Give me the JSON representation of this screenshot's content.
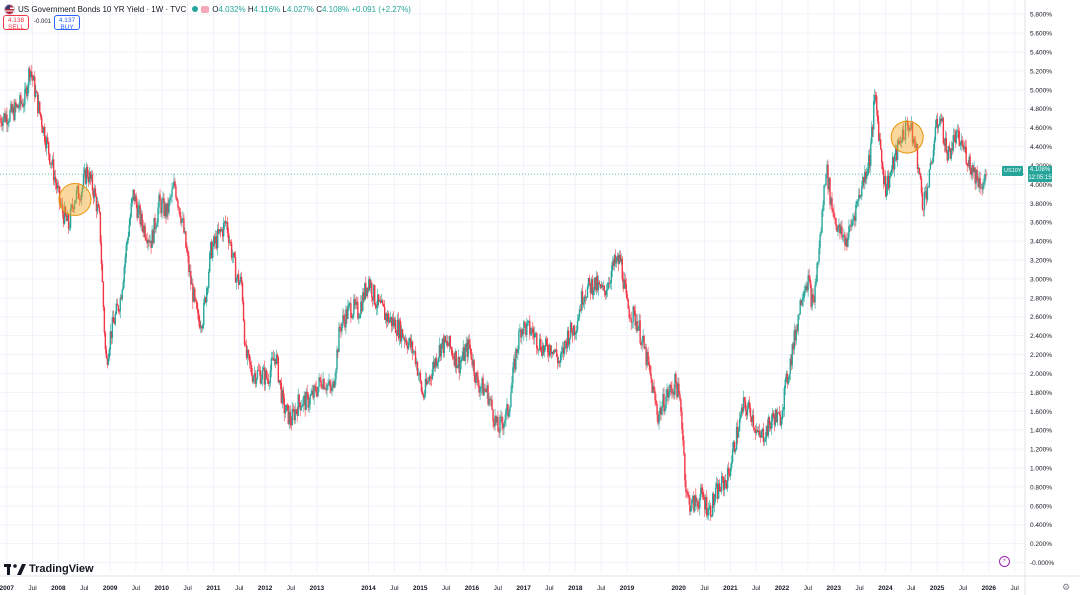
{
  "header": {
    "title": "US Government Bonds 10 YR Yield · 1W · TVC",
    "ohlc": {
      "open_label": "O",
      "open": "4.032%",
      "high_label": "H",
      "high": "4.116%",
      "low_label": "L",
      "low": "4.027%",
      "close_label": "C",
      "close": "4.108%",
      "change": "+0.091 (+2.27%)"
    },
    "sell": {
      "price": "4.138",
      "label": "SELL"
    },
    "buy": {
      "price": "4.137",
      "label": "BUY"
    },
    "spread": "-0.001"
  },
  "price_tag": {
    "ticker": "US10Y",
    "value": "4.108%",
    "countdown": "12:05:15"
  },
  "branding": {
    "logo_text": "TradingView"
  },
  "colors": {
    "up": "#26a69a",
    "down": "#f23645",
    "marker": "#f5a623",
    "grid": "#f0f3fa"
  },
  "chart_data": {
    "type": "candlestick",
    "y_unit": "%",
    "ylim": [
      -0.1,
      5.95
    ],
    "y_ticks": [
      "5.800%",
      "5.600%",
      "5.400%",
      "5.200%",
      "5.000%",
      "4.800%",
      "4.600%",
      "4.400%",
      "4.200%",
      "4.000%",
      "3.800%",
      "3.600%",
      "3.400%",
      "3.200%",
      "3.000%",
      "2.800%",
      "2.600%",
      "2.400%",
      "2.200%",
      "2.000%",
      "1.800%",
      "1.600%",
      "1.400%",
      "1.200%",
      "1.000%",
      "0.800%",
      "0.600%",
      "0.400%",
      "0.200%",
      "-0.000%"
    ],
    "y_tick_values": [
      5.8,
      5.6,
      5.4,
      5.2,
      5.0,
      4.8,
      4.6,
      4.4,
      4.2,
      4.0,
      3.8,
      3.6,
      3.4,
      3.2,
      3.0,
      2.8,
      2.6,
      2.4,
      2.2,
      2.0,
      1.8,
      1.6,
      1.4,
      1.2,
      1.0,
      0.8,
      0.6,
      0.4,
      0.2,
      0.0
    ],
    "x_ticks": [
      "2007",
      "Jul",
      "2008",
      "Jul",
      "2009",
      "Jul",
      "2010",
      "Jul",
      "2011",
      "Jul",
      "2012",
      "Jul",
      "2013",
      "2014",
      "Jul",
      "2015",
      "Jul",
      "2016",
      "Jul",
      "2017",
      "Jul",
      "2018",
      "Jul",
      "2019",
      "2020",
      "Jul",
      "2021",
      "Jul",
      "2022",
      "Jul",
      "2023",
      "Jul",
      "2024",
      "Jul",
      "2025",
      "Jul",
      "2026",
      "Jul"
    ],
    "x_tick_values": [
      2007.0,
      2007.5,
      2008.0,
      2008.5,
      2009.0,
      2009.5,
      2010.0,
      2010.5,
      2011.0,
      2011.5,
      2012.0,
      2012.5,
      2013.0,
      2014.0,
      2014.5,
      2015.0,
      2015.5,
      2016.0,
      2016.5,
      2017.0,
      2017.5,
      2018.0,
      2018.5,
      2019.0,
      2020.0,
      2020.5,
      2021.0,
      2021.5,
      2022.0,
      2022.5,
      2023.0,
      2023.5,
      2024.0,
      2024.5,
      2025.0,
      2025.5,
      2026.0,
      2026.5
    ],
    "xlim": [
      2006.87,
      2026.7
    ],
    "current_price": 4.108,
    "highlight_circles": [
      {
        "x": 2008.32,
        "y": 3.84
      },
      {
        "x": 2024.42,
        "y": 4.5
      }
    ],
    "path": [
      [
        2006.87,
        4.7
      ],
      [
        2007.1,
        4.75
      ],
      [
        2007.35,
        4.9
      ],
      [
        2007.45,
        5.25
      ],
      [
        2007.6,
        4.85
      ],
      [
        2007.75,
        4.5
      ],
      [
        2007.9,
        4.15
      ],
      [
        2008.05,
        3.75
      ],
      [
        2008.2,
        3.55
      ],
      [
        2008.3,
        3.85
      ],
      [
        2008.45,
        3.95
      ],
      [
        2008.55,
        4.15
      ],
      [
        2008.7,
        3.9
      ],
      [
        2008.8,
        3.6
      ],
      [
        2008.85,
        2.95
      ],
      [
        2008.92,
        2.1
      ],
      [
        2009.0,
        2.4
      ],
      [
        2009.2,
        2.8
      ],
      [
        2009.35,
        3.5
      ],
      [
        2009.45,
        3.9
      ],
      [
        2009.6,
        3.6
      ],
      [
        2009.8,
        3.4
      ],
      [
        2009.95,
        3.8
      ],
      [
        2010.1,
        3.7
      ],
      [
        2010.25,
        4.0
      ],
      [
        2010.4,
        3.6
      ],
      [
        2010.55,
        3.0
      ],
      [
        2010.7,
        2.55
      ],
      [
        2010.8,
        2.6
      ],
      [
        2010.95,
        3.3
      ],
      [
        2011.1,
        3.45
      ],
      [
        2011.25,
        3.6
      ],
      [
        2011.35,
        3.3
      ],
      [
        2011.45,
        3.0
      ],
      [
        2011.55,
        2.95
      ],
      [
        2011.62,
        2.2
      ],
      [
        2011.75,
        2.0
      ],
      [
        2011.9,
        2.0
      ],
      [
        2012.05,
        1.95
      ],
      [
        2012.2,
        2.2
      ],
      [
        2012.35,
        1.65
      ],
      [
        2012.5,
        1.5
      ],
      [
        2012.65,
        1.7
      ],
      [
        2012.8,
        1.7
      ],
      [
        2012.95,
        1.78
      ],
      [
        2013.1,
        1.95
      ],
      [
        2013.3,
        1.8
      ],
      [
        2013.45,
        2.5
      ],
      [
        2013.65,
        2.7
      ],
      [
        2013.8,
        2.65
      ],
      [
        2013.95,
        2.9
      ],
      [
        2014.0,
        3.0
      ],
      [
        2014.15,
        2.75
      ],
      [
        2014.35,
        2.6
      ],
      [
        2014.55,
        2.5
      ],
      [
        2014.75,
        2.35
      ],
      [
        2014.9,
        2.2
      ],
      [
        2015.05,
        1.75
      ],
      [
        2015.2,
        2.0
      ],
      [
        2015.4,
        2.3
      ],
      [
        2015.55,
        2.3
      ],
      [
        2015.75,
        2.1
      ],
      [
        2015.95,
        2.3
      ],
      [
        2016.1,
        1.9
      ],
      [
        2016.3,
        1.8
      ],
      [
        2016.5,
        1.4
      ],
      [
        2016.7,
        1.6
      ],
      [
        2016.85,
        2.2
      ],
      [
        2016.95,
        2.5
      ],
      [
        2017.15,
        2.45
      ],
      [
        2017.4,
        2.25
      ],
      [
        2017.55,
        2.3
      ],
      [
        2017.7,
        2.1
      ],
      [
        2017.85,
        2.4
      ],
      [
        2018.0,
        2.5
      ],
      [
        2018.15,
        2.85
      ],
      [
        2018.35,
        2.95
      ],
      [
        2018.55,
        2.85
      ],
      [
        2018.75,
        3.15
      ],
      [
        2018.88,
        3.2
      ],
      [
        2019.0,
        2.7
      ],
      [
        2019.2,
        2.55
      ],
      [
        2019.4,
        2.1
      ],
      [
        2019.6,
        1.55
      ],
      [
        2019.75,
        1.75
      ],
      [
        2019.95,
        1.9
      ],
      [
        2020.05,
        1.6
      ],
      [
        2020.15,
        0.7
      ],
      [
        2020.25,
        0.6
      ],
      [
        2020.45,
        0.7
      ],
      [
        2020.6,
        0.55
      ],
      [
        2020.75,
        0.75
      ],
      [
        2020.95,
        0.9
      ],
      [
        2021.1,
        1.3
      ],
      [
        2021.25,
        1.65
      ],
      [
        2021.4,
        1.6
      ],
      [
        2021.55,
        1.3
      ],
      [
        2021.7,
        1.4
      ],
      [
        2021.85,
        1.55
      ],
      [
        2021.95,
        1.5
      ],
      [
        2022.1,
        1.95
      ],
      [
        2022.25,
        2.4
      ],
      [
        2022.4,
        2.9
      ],
      [
        2022.5,
        3.0
      ],
      [
        2022.6,
        2.7
      ],
      [
        2022.75,
        3.5
      ],
      [
        2022.85,
        4.2
      ],
      [
        2022.95,
        3.8
      ],
      [
        2023.1,
        3.5
      ],
      [
        2023.25,
        3.4
      ],
      [
        2023.4,
        3.7
      ],
      [
        2023.55,
        4.0
      ],
      [
        2023.7,
        4.3
      ],
      [
        2023.8,
        4.95
      ],
      [
        2023.9,
        4.4
      ],
      [
        2024.0,
        3.95
      ],
      [
        2024.15,
        4.2
      ],
      [
        2024.3,
        4.5
      ],
      [
        2024.45,
        4.65
      ],
      [
        2024.6,
        4.35
      ],
      [
        2024.72,
        3.8
      ],
      [
        2024.85,
        4.05
      ],
      [
        2024.95,
        4.5
      ],
      [
        2025.05,
        4.75
      ],
      [
        2025.2,
        4.3
      ],
      [
        2025.35,
        4.5
      ],
      [
        2025.5,
        4.4
      ],
      [
        2025.65,
        4.2
      ],
      [
        2025.8,
        4.05
      ],
      [
        2025.9,
        4.0
      ],
      [
        2025.96,
        4.108
      ]
    ]
  }
}
